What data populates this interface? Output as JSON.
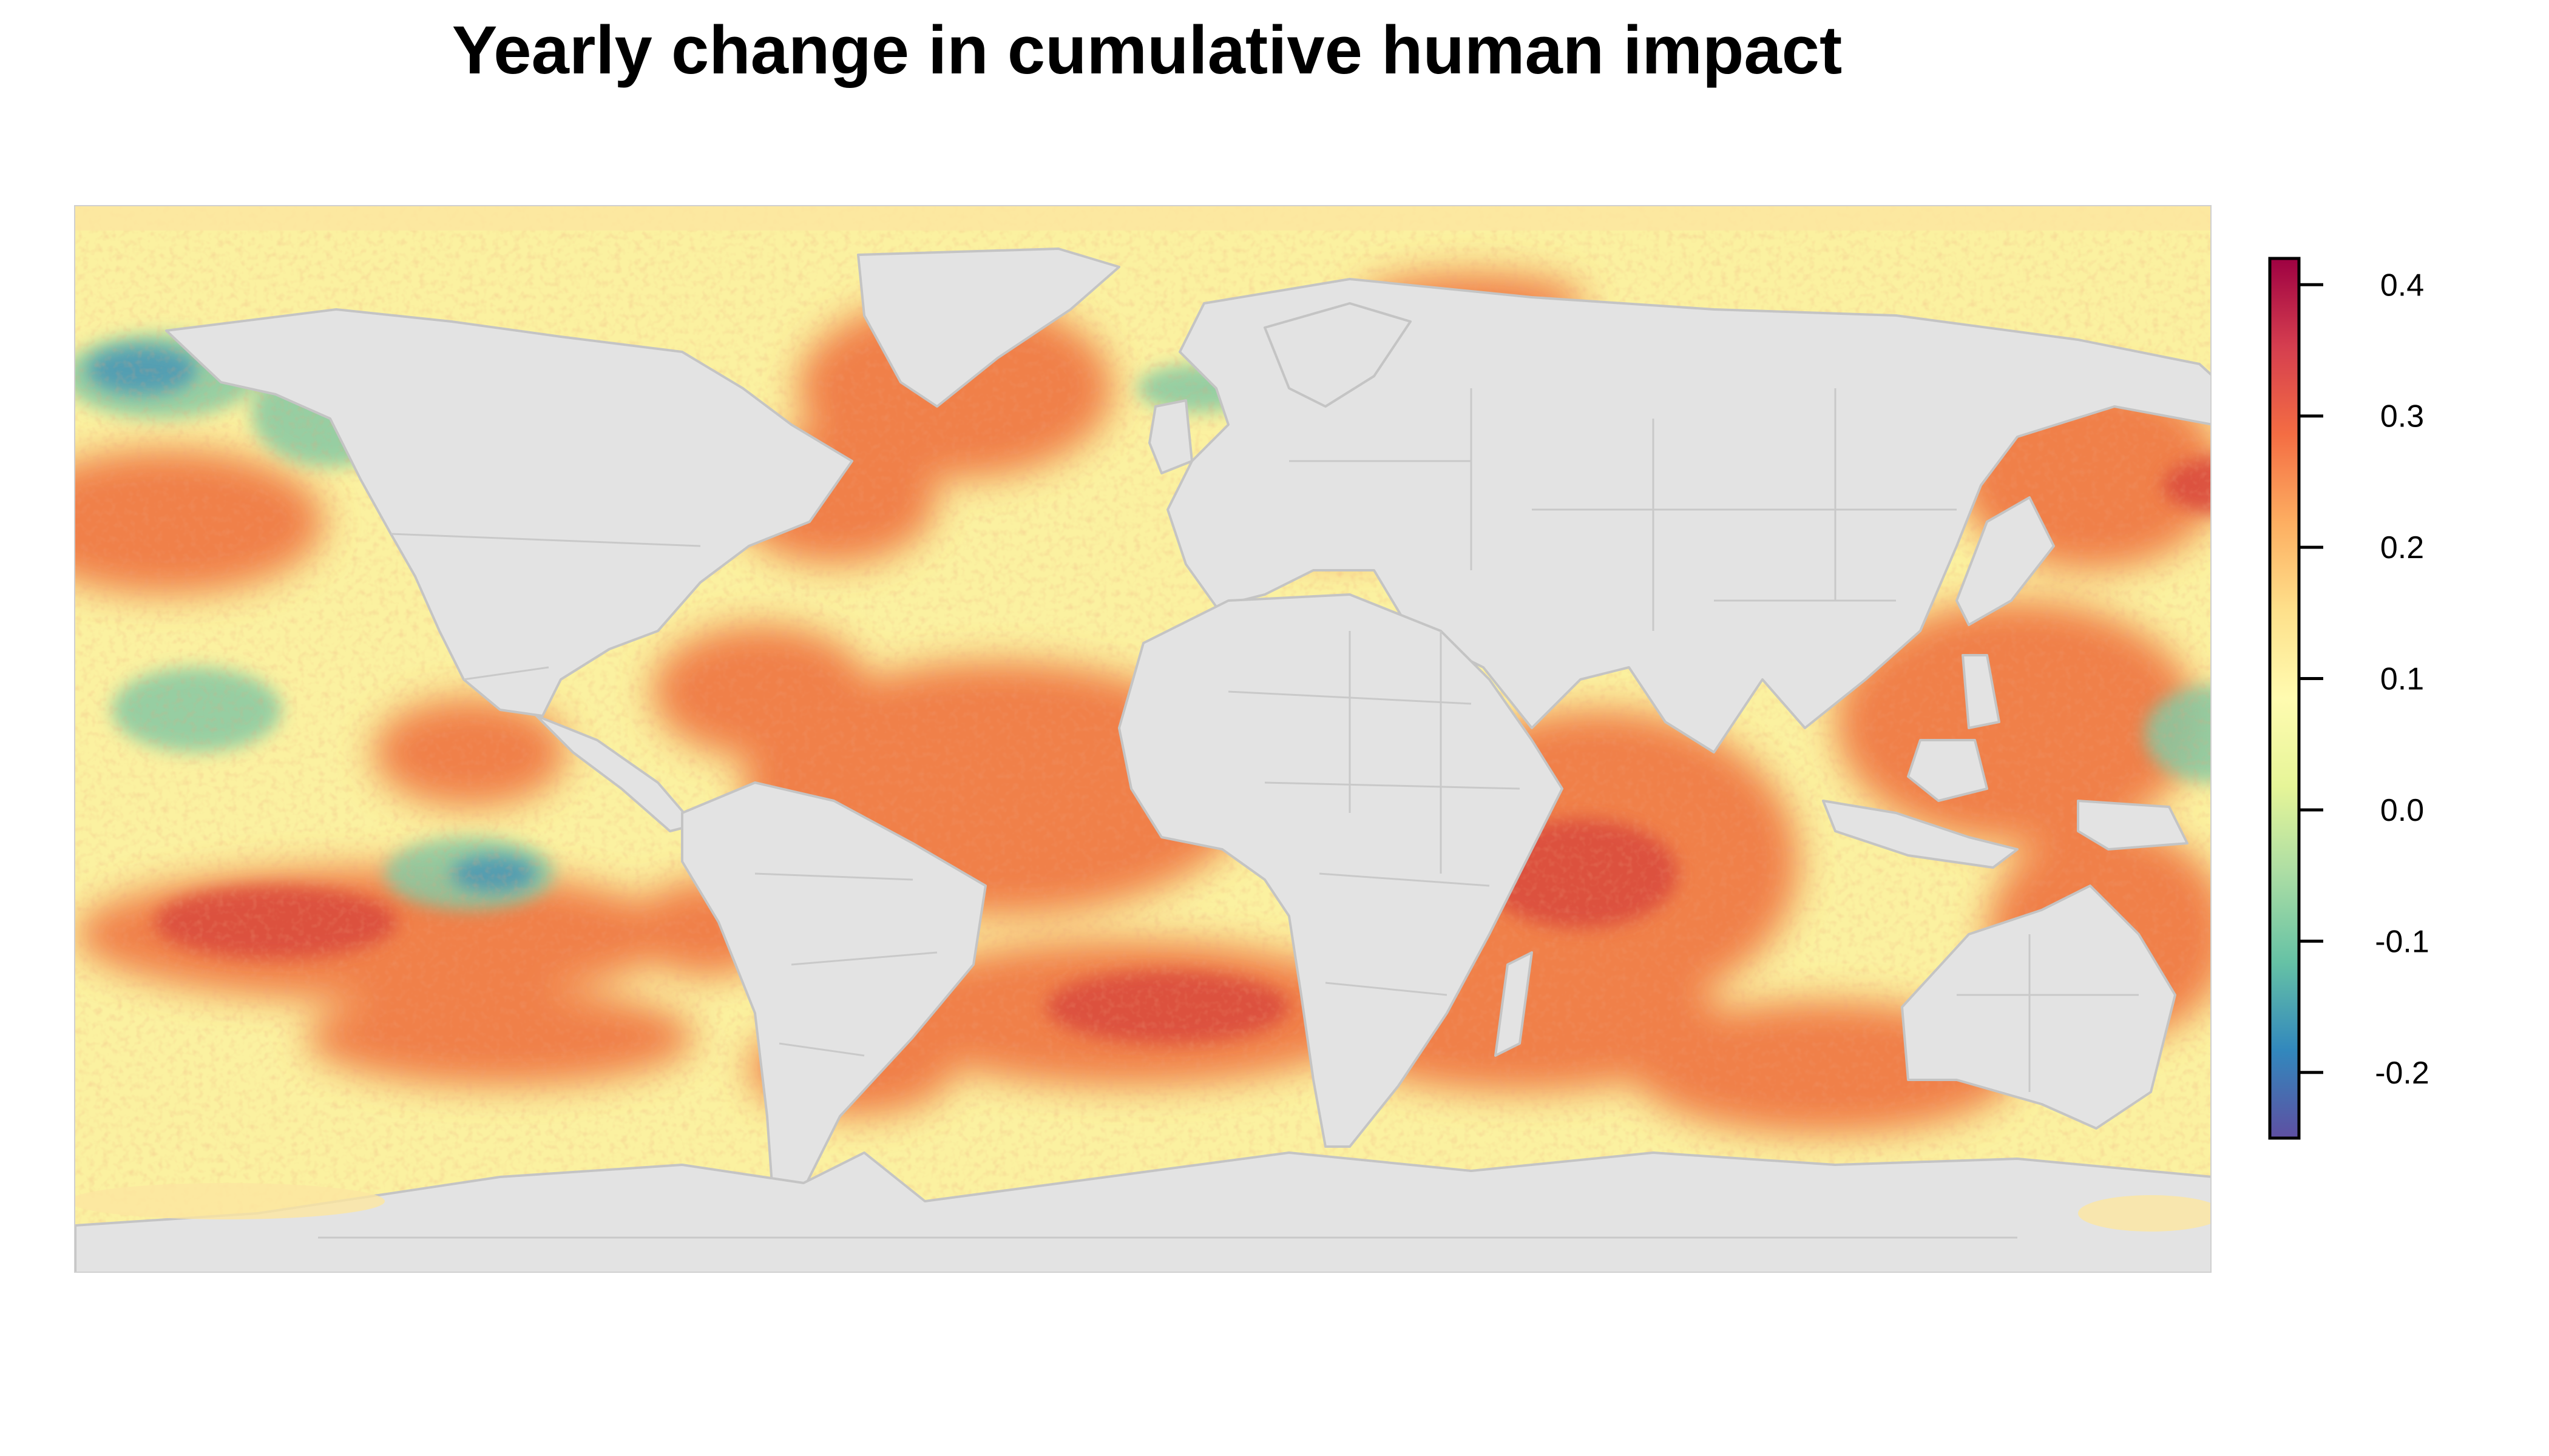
{
  "title": "Yearly change in cumulative human impact",
  "colorbar": {
    "min": -0.25,
    "max": 0.42,
    "ticks": [
      {
        "value": 0.4,
        "label": "0.4"
      },
      {
        "value": 0.3,
        "label": "0.3"
      },
      {
        "value": 0.2,
        "label": "0.2"
      },
      {
        "value": 0.1,
        "label": "0.1"
      },
      {
        "value": 0.0,
        "label": "0.0"
      },
      {
        "value": -0.1,
        "label": "-0.1"
      },
      {
        "value": -0.2,
        "label": "-0.2"
      }
    ],
    "palette": [
      "#5e4fa2",
      "#3288bd",
      "#66c2a5",
      "#abdda4",
      "#e6f598",
      "#fffbb0",
      "#fee08b",
      "#fdae61",
      "#f46d43",
      "#d53e4f",
      "#9e0142"
    ]
  },
  "map": {
    "land_color": "#e3e3e3",
    "border_color": "#c4c4c4",
    "ocean_neutral_color": "#fbf1a0",
    "ocean_high_color": "#f07a45",
    "ocean_very_high_color": "#d94a3e",
    "ocean_negative_color": "#86c9a3",
    "ocean_strong_negative_color": "#3c8fb8"
  }
}
